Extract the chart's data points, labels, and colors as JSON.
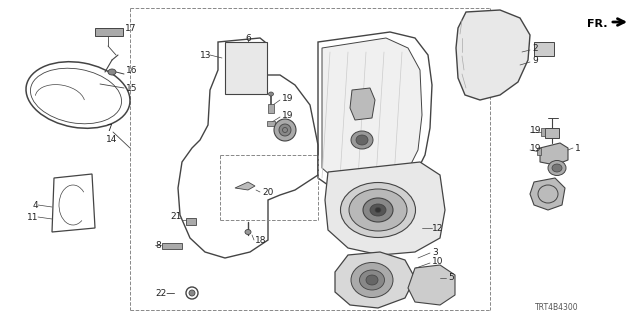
{
  "bg_color": "#ffffff",
  "line_color": "#444444",
  "gray_fill": "#cccccc",
  "dark_fill": "#888888",
  "dashed_color": "#888888",
  "part_number": "TRT4B4300",
  "fr_text": "FR.",
  "label_fontsize": 6.5,
  "pn_fontsize": 5.5,
  "lw_main": 1.0,
  "lw_thin": 0.6,
  "lw_dashed": 0.7
}
